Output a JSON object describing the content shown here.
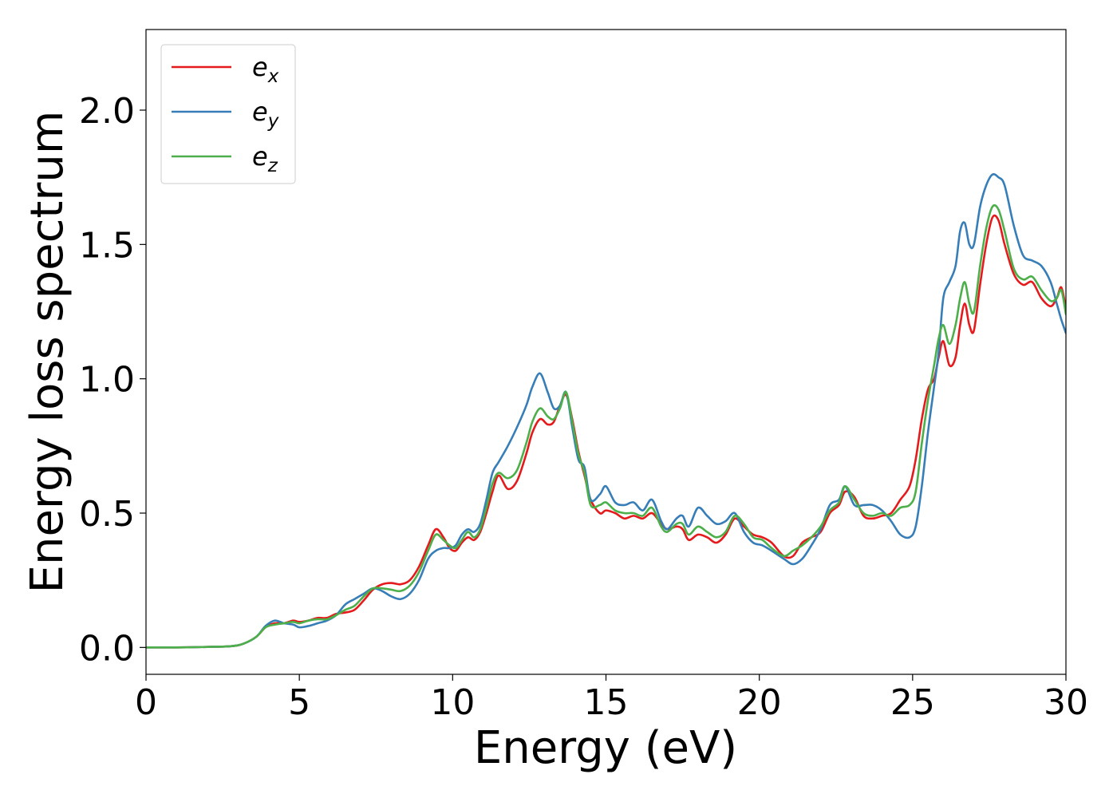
{
  "chart_data": {
    "type": "line",
    "title": "",
    "xlabel": "Energy (eV)",
    "ylabel": "Energy loss spectrum",
    "xlim": [
      0,
      30
    ],
    "ylim": [
      -0.1,
      2.3
    ],
    "xticks": [
      0,
      5,
      10,
      15,
      20,
      25,
      30
    ],
    "xtick_labels": [
      "0",
      "5",
      "10",
      "15",
      "20",
      "25",
      "30"
    ],
    "yticks": [
      0.0,
      0.5,
      1.0,
      1.5,
      2.0
    ],
    "ytick_labels": [
      "0.0",
      "0.5",
      "1.0",
      "1.5",
      "2.0"
    ],
    "grid": false,
    "legend_position": "top-left",
    "series": [
      {
        "name": "e",
        "subscript": "x",
        "color": "#e41a1c",
        "x": [
          0,
          1,
          2,
          2.8,
          3.2,
          3.6,
          3.9,
          4.2,
          4.5,
          4.8,
          5.0,
          5.3,
          5.6,
          5.9,
          6.2,
          6.5,
          6.8,
          7.1,
          7.4,
          7.7,
          8.0,
          8.3,
          8.6,
          8.9,
          9.2,
          9.45,
          9.7,
          9.9,
          10.1,
          10.3,
          10.5,
          10.7,
          10.9,
          11.1,
          11.3,
          11.5,
          11.8,
          12.1,
          12.4,
          12.6,
          12.85,
          13.1,
          13.3,
          13.5,
          13.7,
          13.9,
          14.1,
          14.3,
          14.5,
          14.8,
          15.0,
          15.3,
          15.6,
          15.9,
          16.2,
          16.5,
          16.8,
          17.0,
          17.3,
          17.5,
          17.7,
          18.0,
          18.3,
          18.6,
          18.9,
          19.2,
          19.5,
          19.8,
          20.1,
          20.4,
          20.8,
          21.1,
          21.4,
          21.7,
          22.0,
          22.3,
          22.6,
          22.8,
          23.1,
          23.4,
          23.7,
          24.0,
          24.3,
          24.6,
          24.9,
          25.1,
          25.3,
          25.5,
          25.7,
          25.85,
          26.0,
          26.2,
          26.4,
          26.55,
          26.7,
          26.85,
          27.0,
          27.2,
          27.4,
          27.6,
          27.8,
          28.0,
          28.3,
          28.6,
          28.9,
          29.2,
          29.5,
          29.7,
          29.85,
          30.0
        ],
        "y": [
          0.0,
          0.0,
          0.002,
          0.005,
          0.015,
          0.04,
          0.075,
          0.09,
          0.09,
          0.1,
          0.095,
          0.1,
          0.11,
          0.11,
          0.125,
          0.13,
          0.14,
          0.175,
          0.215,
          0.235,
          0.24,
          0.235,
          0.25,
          0.3,
          0.38,
          0.44,
          0.41,
          0.37,
          0.36,
          0.39,
          0.41,
          0.4,
          0.43,
          0.5,
          0.58,
          0.64,
          0.59,
          0.62,
          0.72,
          0.8,
          0.85,
          0.83,
          0.84,
          0.9,
          0.94,
          0.85,
          0.73,
          0.64,
          0.55,
          0.5,
          0.51,
          0.5,
          0.48,
          0.49,
          0.48,
          0.5,
          0.46,
          0.44,
          0.45,
          0.44,
          0.4,
          0.42,
          0.41,
          0.39,
          0.42,
          0.48,
          0.45,
          0.42,
          0.41,
          0.39,
          0.34,
          0.34,
          0.39,
          0.41,
          0.43,
          0.5,
          0.53,
          0.58,
          0.56,
          0.49,
          0.48,
          0.49,
          0.5,
          0.55,
          0.6,
          0.7,
          0.85,
          0.96,
          1.0,
          1.08,
          1.14,
          1.05,
          1.08,
          1.2,
          1.28,
          1.2,
          1.18,
          1.35,
          1.5,
          1.6,
          1.59,
          1.5,
          1.39,
          1.35,
          1.36,
          1.3,
          1.27,
          1.3,
          1.34,
          1.26
        ]
      },
      {
        "name": "e",
        "subscript": "y",
        "color": "#377eb8",
        "x": [
          0,
          1,
          2,
          2.8,
          3.2,
          3.6,
          3.9,
          4.2,
          4.5,
          4.8,
          5.0,
          5.3,
          5.6,
          5.9,
          6.2,
          6.5,
          6.8,
          7.1,
          7.4,
          7.7,
          8.0,
          8.3,
          8.6,
          8.9,
          9.2,
          9.45,
          9.7,
          9.9,
          10.1,
          10.3,
          10.5,
          10.7,
          10.9,
          11.1,
          11.3,
          11.5,
          11.8,
          12.1,
          12.4,
          12.6,
          12.85,
          13.1,
          13.3,
          13.5,
          13.7,
          13.9,
          14.1,
          14.3,
          14.5,
          14.8,
          15.0,
          15.3,
          15.6,
          15.9,
          16.2,
          16.5,
          16.8,
          17.0,
          17.3,
          17.5,
          17.7,
          18.0,
          18.3,
          18.6,
          18.9,
          19.2,
          19.5,
          19.8,
          20.1,
          20.4,
          20.8,
          21.1,
          21.4,
          21.7,
          22.0,
          22.3,
          22.6,
          22.8,
          23.1,
          23.4,
          23.7,
          24.0,
          24.3,
          24.6,
          24.9,
          25.1,
          25.3,
          25.5,
          25.7,
          25.85,
          26.0,
          26.2,
          26.4,
          26.55,
          26.7,
          26.85,
          27.0,
          27.2,
          27.4,
          27.6,
          27.8,
          28.0,
          28.3,
          28.6,
          28.9,
          29.2,
          29.5,
          29.7,
          29.85,
          30.0
        ],
        "y": [
          0.0,
          0.0,
          0.002,
          0.005,
          0.015,
          0.04,
          0.08,
          0.1,
          0.09,
          0.085,
          0.075,
          0.08,
          0.09,
          0.1,
          0.12,
          0.16,
          0.18,
          0.2,
          0.22,
          0.21,
          0.19,
          0.18,
          0.2,
          0.25,
          0.33,
          0.36,
          0.37,
          0.37,
          0.38,
          0.42,
          0.44,
          0.43,
          0.46,
          0.55,
          0.65,
          0.69,
          0.75,
          0.82,
          0.9,
          0.97,
          1.02,
          0.95,
          0.89,
          0.9,
          0.95,
          0.82,
          0.7,
          0.67,
          0.55,
          0.57,
          0.6,
          0.54,
          0.53,
          0.54,
          0.51,
          0.55,
          0.47,
          0.44,
          0.48,
          0.49,
          0.45,
          0.52,
          0.49,
          0.46,
          0.47,
          0.5,
          0.43,
          0.39,
          0.38,
          0.36,
          0.33,
          0.31,
          0.33,
          0.38,
          0.44,
          0.53,
          0.55,
          0.6,
          0.53,
          0.53,
          0.53,
          0.51,
          0.47,
          0.42,
          0.41,
          0.45,
          0.6,
          0.8,
          0.97,
          1.1,
          1.3,
          1.36,
          1.42,
          1.55,
          1.58,
          1.5,
          1.5,
          1.64,
          1.72,
          1.76,
          1.75,
          1.72,
          1.57,
          1.46,
          1.44,
          1.42,
          1.36,
          1.28,
          1.22,
          1.17
        ]
      },
      {
        "name": "e",
        "subscript": "z",
        "color": "#4daf4a",
        "x": [
          0,
          1,
          2,
          2.8,
          3.2,
          3.6,
          3.9,
          4.2,
          4.5,
          4.8,
          5.0,
          5.3,
          5.6,
          5.9,
          6.2,
          6.5,
          6.8,
          7.1,
          7.4,
          7.7,
          8.0,
          8.3,
          8.6,
          8.9,
          9.2,
          9.45,
          9.7,
          9.9,
          10.1,
          10.3,
          10.5,
          10.7,
          10.9,
          11.1,
          11.3,
          11.5,
          11.8,
          12.1,
          12.4,
          12.6,
          12.85,
          13.1,
          13.3,
          13.5,
          13.7,
          13.9,
          14.1,
          14.3,
          14.5,
          14.8,
          15.0,
          15.3,
          15.6,
          15.9,
          16.2,
          16.5,
          16.8,
          17.0,
          17.3,
          17.5,
          17.7,
          18.0,
          18.3,
          18.6,
          18.9,
          19.2,
          19.5,
          19.8,
          20.1,
          20.4,
          20.8,
          21.1,
          21.4,
          21.7,
          22.0,
          22.3,
          22.6,
          22.8,
          23.1,
          23.4,
          23.7,
          24.0,
          24.3,
          24.6,
          24.9,
          25.1,
          25.3,
          25.5,
          25.7,
          25.85,
          26.0,
          26.2,
          26.4,
          26.55,
          26.7,
          26.85,
          27.0,
          27.2,
          27.4,
          27.6,
          27.8,
          28.0,
          28.3,
          28.6,
          28.9,
          29.2,
          29.5,
          29.7,
          29.85,
          30.0
        ],
        "y": [
          0.0,
          0.0,
          0.002,
          0.005,
          0.015,
          0.04,
          0.075,
          0.085,
          0.09,
          0.095,
          0.09,
          0.1,
          0.105,
          0.105,
          0.12,
          0.14,
          0.155,
          0.19,
          0.22,
          0.22,
          0.215,
          0.21,
          0.23,
          0.28,
          0.36,
          0.42,
          0.4,
          0.38,
          0.37,
          0.4,
          0.43,
          0.41,
          0.44,
          0.52,
          0.61,
          0.65,
          0.63,
          0.66,
          0.76,
          0.84,
          0.89,
          0.86,
          0.85,
          0.89,
          0.95,
          0.84,
          0.72,
          0.65,
          0.53,
          0.53,
          0.54,
          0.51,
          0.5,
          0.5,
          0.49,
          0.52,
          0.45,
          0.43,
          0.46,
          0.46,
          0.42,
          0.45,
          0.43,
          0.41,
          0.43,
          0.49,
          0.46,
          0.41,
          0.4,
          0.37,
          0.34,
          0.36,
          0.38,
          0.41,
          0.45,
          0.51,
          0.54,
          0.6,
          0.55,
          0.5,
          0.49,
          0.5,
          0.49,
          0.52,
          0.53,
          0.58,
          0.76,
          0.92,
          1.05,
          1.15,
          1.2,
          1.13,
          1.2,
          1.3,
          1.36,
          1.28,
          1.25,
          1.42,
          1.56,
          1.64,
          1.63,
          1.55,
          1.41,
          1.37,
          1.38,
          1.33,
          1.29,
          1.3,
          1.33,
          1.24
        ]
      }
    ]
  }
}
